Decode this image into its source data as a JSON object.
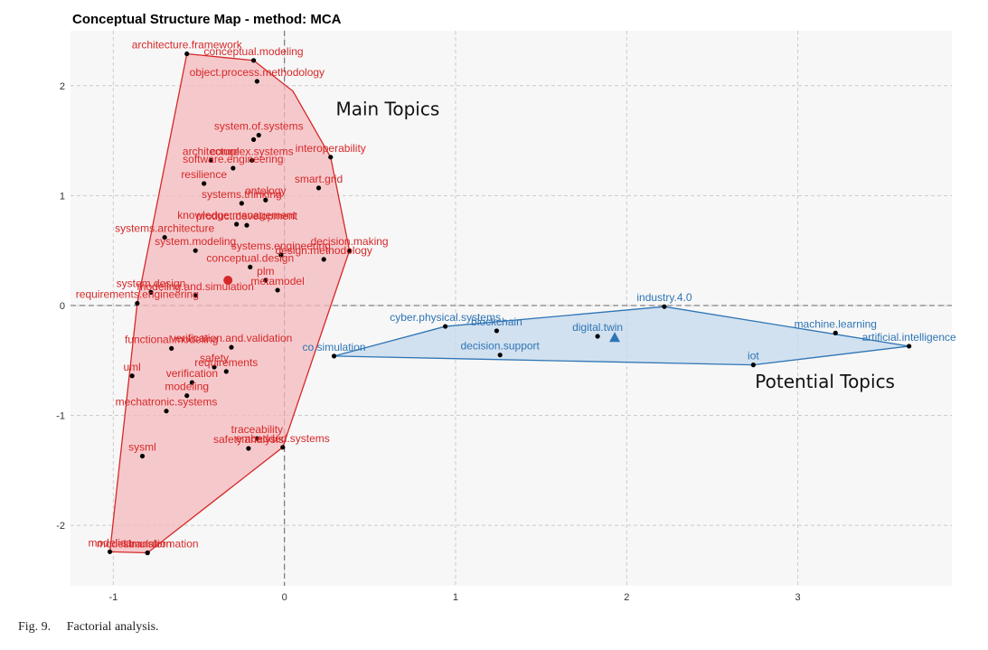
{
  "caption": {
    "fig_number": "Fig. 9.",
    "text": "Factorial analysis."
  },
  "chart_data": {
    "type": "scatter",
    "title": "Conceptual Structure Map - method: MCA",
    "xlabel": "",
    "ylabel": "",
    "xlim": [
      -1.25,
      3.9
    ],
    "ylim": [
      -2.55,
      2.5
    ],
    "x_ticks": [
      -1,
      0,
      1,
      2,
      3
    ],
    "y_ticks": [
      -2,
      -1,
      0,
      1,
      2
    ],
    "grid": true,
    "colors": {
      "cluster1": "#d62828",
      "cluster1_fill": "#f4b9bd",
      "cluster2": "#2e75b6",
      "cluster2_fill": "#c5d9ec",
      "panel": "#f7f7f7",
      "grid": "#cccccc"
    },
    "annotations": [
      {
        "text": "Main Topics",
        "x": 0.3,
        "y": 1.73
      },
      {
        "text": "Potential Topics",
        "x": 2.75,
        "y": -0.75
      }
    ],
    "clusters": [
      {
        "id": 1,
        "color": "#d62828",
        "centroid": {
          "x": -0.33,
          "y": 0.23
        },
        "hull": [
          {
            "x": -0.57,
            "y": 2.29
          },
          {
            "x": -0.18,
            "y": 2.23
          },
          {
            "x": 0.05,
            "y": 1.95
          },
          {
            "x": 0.27,
            "y": 1.35
          },
          {
            "x": 0.38,
            "y": 0.5
          },
          {
            "x": -0.01,
            "y": -1.29
          },
          {
            "x": -0.8,
            "y": -2.25
          },
          {
            "x": -1.02,
            "y": -2.24
          },
          {
            "x": -0.86,
            "y": 0.02
          }
        ],
        "points": [
          {
            "label": "architecture.framework",
            "x": -0.57,
            "y": 2.29
          },
          {
            "label": "conceptual.modeling",
            "x": -0.18,
            "y": 2.23
          },
          {
            "label": "object.process.methodology",
            "x": -0.16,
            "y": 2.04
          },
          {
            "label": "system.of.systems",
            "x": -0.15,
            "y": 1.55
          },
          {
            "label": "",
            "x": -0.18,
            "y": 1.51
          },
          {
            "label": "architecture",
            "x": -0.43,
            "y": 1.32
          },
          {
            "label": "interoperability",
            "x": 0.27,
            "y": 1.35
          },
          {
            "label": "complex.systems",
            "x": -0.19,
            "y": 1.32
          },
          {
            "label": "software.engineering",
            "x": -0.3,
            "y": 1.25
          },
          {
            "label": "resilience",
            "x": -0.47,
            "y": 1.11
          },
          {
            "label": "smart.grid",
            "x": 0.2,
            "y": 1.07
          },
          {
            "label": "systems.thinking",
            "x": -0.25,
            "y": 0.93
          },
          {
            "label": "ontology",
            "x": -0.11,
            "y": 0.96
          },
          {
            "label": "knowledge.management",
            "x": -0.28,
            "y": 0.74
          },
          {
            "label": "product.development",
            "x": -0.22,
            "y": 0.73
          },
          {
            "label": "systems.architecture",
            "x": -0.7,
            "y": 0.62
          },
          {
            "label": "system.modeling",
            "x": -0.52,
            "y": 0.5
          },
          {
            "label": "decision.making",
            "x": 0.38,
            "y": 0.5
          },
          {
            "label": "systems.engineering",
            "x": -0.02,
            "y": 0.46
          },
          {
            "label": "design.methodology",
            "x": 0.23,
            "y": 0.42
          },
          {
            "label": "conceptual.design",
            "x": -0.2,
            "y": 0.35
          },
          {
            "label": "plm",
            "x": -0.11,
            "y": 0.23
          },
          {
            "label": "system.design",
            "x": -0.78,
            "y": 0.12
          },
          {
            "label": "metamodel",
            "x": -0.04,
            "y": 0.14
          },
          {
            "label": "modeling.and.simulation",
            "x": -0.52,
            "y": 0.09
          },
          {
            "label": "requirements.engineering",
            "x": -0.86,
            "y": 0.02
          },
          {
            "label": "functional.modeling",
            "x": -0.66,
            "y": -0.39
          },
          {
            "label": "verification.and.validation",
            "x": -0.31,
            "y": -0.38
          },
          {
            "label": "safety",
            "x": -0.41,
            "y": -0.56
          },
          {
            "label": "requirements",
            "x": -0.34,
            "y": -0.6
          },
          {
            "label": "uml",
            "x": -0.89,
            "y": -0.64
          },
          {
            "label": "verification",
            "x": -0.54,
            "y": -0.7
          },
          {
            "label": "modeling",
            "x": -0.57,
            "y": -0.82
          },
          {
            "label": "mechatronic.systems",
            "x": -0.69,
            "y": -0.96
          },
          {
            "label": "sysml",
            "x": -0.83,
            "y": -1.37
          },
          {
            "label": "traceability",
            "x": -0.16,
            "y": -1.21
          },
          {
            "label": "safety.analysis",
            "x": -0.21,
            "y": -1.3
          },
          {
            "label": "embedded.systems",
            "x": -0.01,
            "y": -1.29
          },
          {
            "label": "simulation",
            "x": -0.8,
            "y": -2.25
          },
          {
            "label": "modelica",
            "x": -1.02,
            "y": -2.24
          },
          {
            "label": "model.transformation",
            "x": -0.8,
            "y": -2.25
          }
        ]
      },
      {
        "id": 2,
        "color": "#2e75b6",
        "centroid": {
          "x": 1.93,
          "y": -0.29
        },
        "hull": [
          {
            "x": 0.29,
            "y": -0.46
          },
          {
            "x": 0.94,
            "y": -0.19
          },
          {
            "x": 2.22,
            "y": -0.01
          },
          {
            "x": 3.65,
            "y": -0.37
          },
          {
            "x": 2.74,
            "y": -0.54
          }
        ],
        "points": [
          {
            "label": "industry.4.0",
            "x": 2.22,
            "y": -0.01
          },
          {
            "label": "cyber.physical.systems",
            "x": 0.94,
            "y": -0.19
          },
          {
            "label": "blockchain",
            "x": 1.24,
            "y": -0.23
          },
          {
            "label": "digital.twin",
            "x": 1.83,
            "y": -0.28
          },
          {
            "label": "machine.learning",
            "x": 3.22,
            "y": -0.25
          },
          {
            "label": "co.simulation",
            "x": 0.29,
            "y": -0.46
          },
          {
            "label": "decision.support",
            "x": 1.26,
            "y": -0.45
          },
          {
            "label": "artificial.intelligence",
            "x": 3.65,
            "y": -0.37
          },
          {
            "label": "iot",
            "x": 2.74,
            "y": -0.54
          }
        ]
      }
    ]
  }
}
